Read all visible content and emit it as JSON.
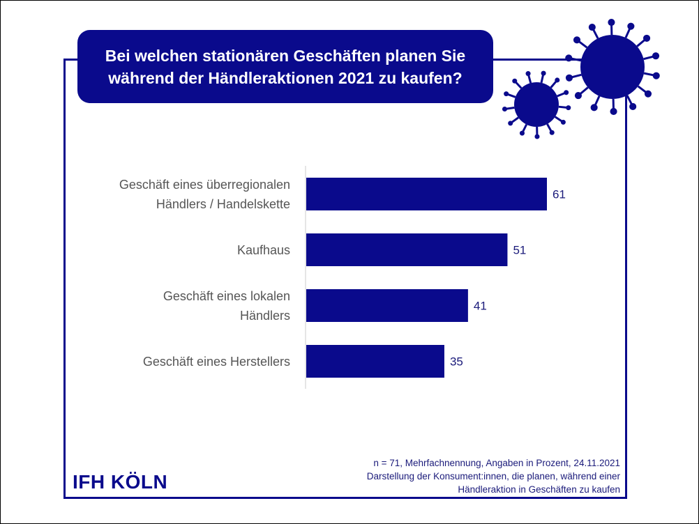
{
  "colors": {
    "brand": "#0a0a8c",
    "label": "#555555"
  },
  "logo": "IFH KÖLN",
  "note": [
    "n = 71, Mehrfachnennung, Angaben in Prozent, 24.11.2021",
    "Darstellung der Konsument:innen, die planen, während einer",
    "Händleraktion in Geschäften zu kaufen"
  ],
  "chart_data": {
    "type": "bar",
    "orientation": "horizontal",
    "title": [
      "Bei welchen stationären Geschäften planen Sie",
      "während der Händleraktionen 2021 zu kaufen?"
    ],
    "categories": [
      [
        "Geschäft eines überregionalen",
        "Händlers / Handelskette"
      ],
      [
        "Kaufhaus"
      ],
      [
        "Geschäft eines lokalen",
        "Händlers"
      ],
      [
        "Geschäft eines Herstellers"
      ]
    ],
    "values": [
      61,
      51,
      41,
      35
    ],
    "unit": "%",
    "xlabel": "",
    "ylabel": ""
  }
}
